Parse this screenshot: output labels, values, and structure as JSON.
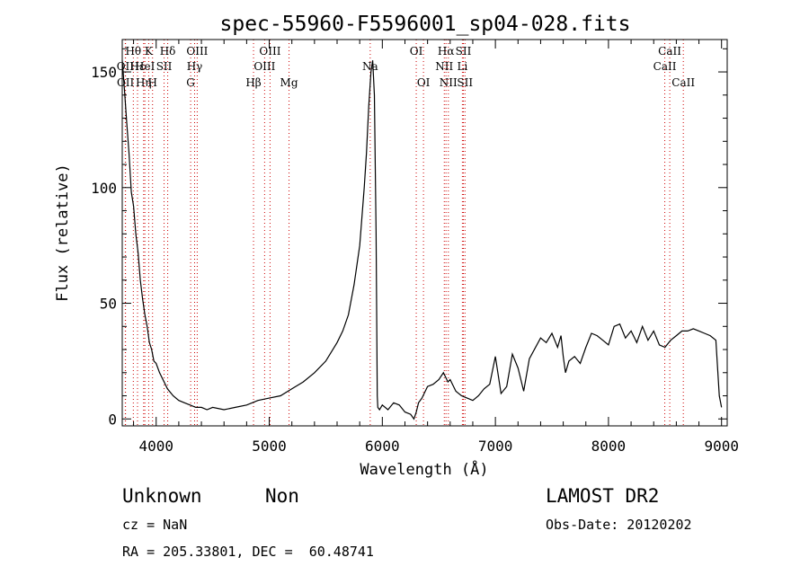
{
  "chart_data": {
    "type": "line",
    "title": "spec-55960-F5596001_sp04-028.fits",
    "xlabel": "Wavelength (Å)",
    "ylabel": "Flux (relative)",
    "xlim": [
      3700,
      9050
    ],
    "ylim": [
      -3,
      164
    ],
    "xticks": [
      4000,
      5000,
      6000,
      7000,
      8000,
      9000
    ],
    "yticks": [
      0,
      50,
      100,
      150
    ],
    "grid": false,
    "series": [
      {
        "x": [
          3700,
          3720,
          3740,
          3760,
          3780,
          3800,
          3820,
          3840,
          3860,
          3880,
          3900,
          3920,
          3940,
          3960,
          3980,
          4000,
          4030,
          4060,
          4100,
          4150,
          4200,
          4250,
          4300,
          4350,
          4400,
          4450,
          4500,
          4600,
          4700,
          4800,
          4900,
          5000,
          5100,
          5200,
          5300,
          5400,
          5500,
          5600,
          5650,
          5700,
          5750,
          5800,
          5840,
          5860,
          5880,
          5900,
          5915,
          5930,
          5945,
          5955,
          5960,
          5975,
          6000,
          6050,
          6100,
          6150,
          6200,
          6250,
          6280,
          6300,
          6320,
          6350,
          6400,
          6450,
          6500,
          6540,
          6560,
          6580,
          6600,
          6650,
          6700,
          6750,
          6800,
          6850,
          6900,
          6950,
          7000,
          7050,
          7100,
          7150,
          7200,
          7250,
          7300,
          7400,
          7450,
          7500,
          7550,
          7580,
          7600,
          7620,
          7650,
          7700,
          7750,
          7800,
          7850,
          7900,
          7950,
          8000,
          8050,
          8100,
          8150,
          8200,
          8250,
          8300,
          8350,
          8400,
          8450,
          8500,
          8550,
          8600,
          8650,
          8700,
          8750,
          8800,
          8850,
          8900,
          8950,
          8980,
          9000
        ],
        "y": [
          155,
          142,
          128,
          115,
          98,
          92,
          80,
          72,
          60,
          52,
          45,
          40,
          33,
          30,
          25,
          24,
          20,
          17,
          13,
          10,
          8,
          7,
          6,
          5,
          5,
          4,
          5,
          4,
          5,
          6,
          8,
          9,
          10,
          13,
          16,
          20,
          25,
          33,
          38,
          45,
          58,
          75,
          100,
          115,
          135,
          150,
          155,
          140,
          80,
          10,
          5,
          4,
          6,
          4,
          7,
          6,
          3,
          2,
          0,
          3,
          7,
          9,
          14,
          15,
          17,
          20,
          18,
          16,
          17,
          12,
          10,
          9,
          8,
          10,
          13,
          15,
          27,
          11,
          14,
          28,
          22,
          12,
          26,
          35,
          33,
          37,
          31,
          36,
          27,
          20,
          25,
          27,
          24,
          31,
          37,
          36,
          34,
          32,
          40,
          41,
          35,
          38,
          33,
          40,
          34,
          38,
          32,
          31,
          34,
          36,
          38,
          38,
          39,
          38,
          37,
          36,
          34,
          10,
          5
        ]
      }
    ],
    "line_markers": [
      {
        "label": "Hθ",
        "x": 3798,
        "row": 1
      },
      {
        "label": "OII",
        "x": 3727,
        "row": 2
      },
      {
        "label": "Hε",
        "x": 3835,
        "row": 2
      },
      {
        "label": "OII",
        "x": 3729,
        "row": 3
      },
      {
        "label": "Hη",
        "x": 3889,
        "row": 3
      },
      {
        "label": "K",
        "x": 3934,
        "row": 1
      },
      {
        "label": "HeI",
        "x": 3900,
        "row": 2
      },
      {
        "label": "H",
        "x": 3968,
        "row": 3
      },
      {
        "label": "SII",
        "x": 4070,
        "row": 2
      },
      {
        "label": "Hδ",
        "x": 4102,
        "row": 1
      },
      {
        "label": "OIII",
        "x": 4363,
        "row": 1
      },
      {
        "label": "Hγ",
        "x": 4340,
        "row": 2
      },
      {
        "label": "G",
        "x": 4305,
        "row": 3
      },
      {
        "label": "OIII",
        "x": 5007,
        "row": 1
      },
      {
        "label": "OIII",
        "x": 4959,
        "row": 2
      },
      {
        "label": "Hβ",
        "x": 4861,
        "row": 3
      },
      {
        "label": "Mg",
        "x": 5175,
        "row": 3
      },
      {
        "label": "Na",
        "x": 5893,
        "row": 2
      },
      {
        "label": "OI",
        "x": 6300,
        "row": 1
      },
      {
        "label": "OI",
        "x": 6364,
        "row": 3
      },
      {
        "label": "Hα",
        "x": 6563,
        "row": 1
      },
      {
        "label": "NII",
        "x": 6548,
        "row": 2
      },
      {
        "label": "NII",
        "x": 6584,
        "row": 3
      },
      {
        "label": "SII",
        "x": 6717,
        "row": 1
      },
      {
        "label": "Li",
        "x": 6708,
        "row": 2
      },
      {
        "label": "SII",
        "x": 6731,
        "row": 3
      },
      {
        "label": "CaII",
        "x": 8542,
        "row": 1
      },
      {
        "label": "CaII",
        "x": 8498,
        "row": 2
      },
      {
        "label": "CaII",
        "x": 8662,
        "row": 3
      }
    ],
    "colors": {
      "spectrum": "#000000",
      "markers": "#cc0000"
    }
  },
  "info": {
    "class": "Unknown",
    "subclass": "Non",
    "survey": "LAMOST DR2",
    "cz": "cz = NaN",
    "obs_date": "Obs-Date: 20120202",
    "coords": "RA = 205.33801, DEC =  60.48741"
  }
}
